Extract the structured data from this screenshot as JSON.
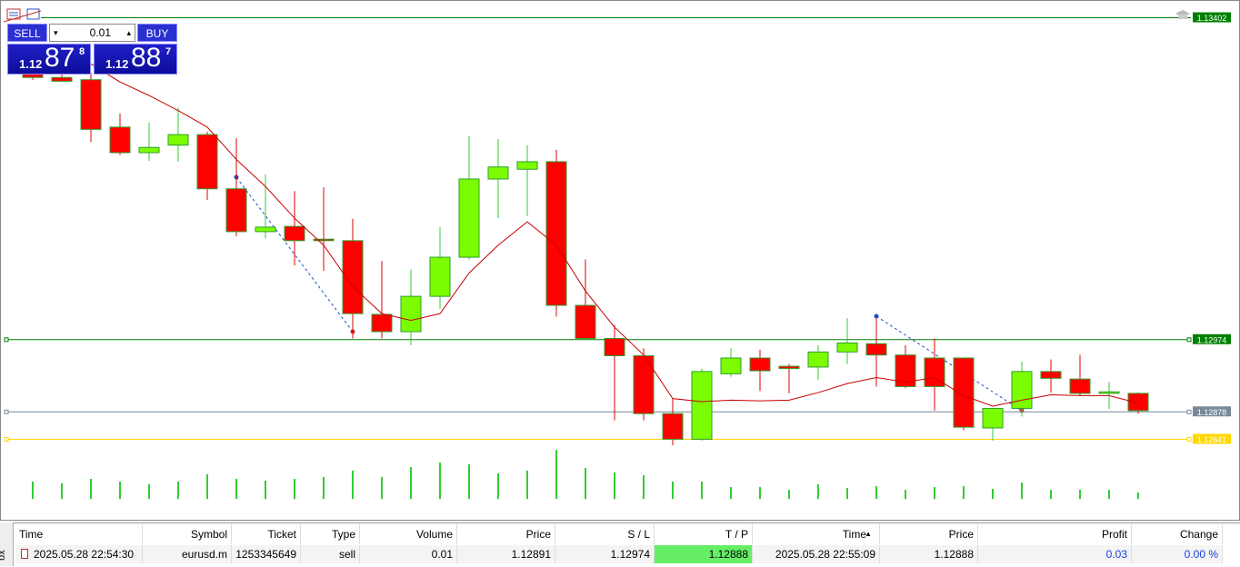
{
  "trade_panel": {
    "sell": "SELL",
    "buy": "BUY",
    "volume": "0.01",
    "bid": {
      "big": "1.12",
      "pips": "87",
      "fraction": "8"
    },
    "ask": {
      "big": "1.12",
      "pips": "88",
      "fraction": "7"
    }
  },
  "chart_data": {
    "type": "candlestick",
    "ylim": [
      1.12833,
      1.13425
    ],
    "open": [
      1.13352,
      1.13322,
      1.13319,
      1.13256,
      1.13222,
      1.13232,
      1.13246,
      1.13174,
      1.13117,
      1.13124,
      1.13107,
      1.13105,
      1.13007,
      1.12984,
      1.13031,
      1.13083,
      1.13187,
      1.132,
      1.1321,
      1.13019,
      1.12975,
      1.12952,
      1.12875,
      1.12841,
      1.12928,
      1.12949,
      1.12938,
      1.12937,
      1.12957,
      1.12968,
      1.12953,
      1.12949,
      1.12949,
      1.12856,
      1.12882,
      1.12931,
      1.12921,
      1.12902,
      1.12902
    ],
    "high": [
      1.13365,
      1.13334,
      1.13328,
      1.13274,
      1.13262,
      1.13282,
      1.1325,
      1.13241,
      1.13193,
      1.13171,
      1.13176,
      1.13134,
      1.13078,
      1.13067,
      1.13123,
      1.13244,
      1.1324,
      1.13232,
      1.13226,
      1.1308,
      1.12993,
      1.12962,
      1.12895,
      1.12935,
      1.12962,
      1.1296,
      1.12941,
      1.12966,
      1.13002,
      1.13002,
      1.12966,
      1.12975,
      1.12949,
      1.12882,
      1.12944,
      1.12947,
      1.12953,
      1.12917,
      1.12903
    ],
    "low": [
      1.13319,
      1.13317,
      1.13236,
      1.13219,
      1.13211,
      1.1321,
      1.13159,
      1.13111,
      1.13108,
      1.13072,
      1.13065,
      1.12975,
      1.12975,
      1.12966,
      1.13014,
      1.1308,
      1.13135,
      1.13138,
      1.13004,
      1.12975,
      1.12866,
      1.12866,
      1.12833,
      1.12839,
      1.12924,
      1.12905,
      1.12902,
      1.1292,
      1.12941,
      1.12911,
      1.12909,
      1.12879,
      1.12853,
      1.12839,
      1.12871,
      1.12903,
      1.12899,
      1.12881,
      1.12875
    ],
    "close": [
      1.13322,
      1.13317,
      1.13253,
      1.13222,
      1.13229,
      1.13246,
      1.13174,
      1.13117,
      1.13123,
      1.13105,
      1.13105,
      1.13008,
      1.12984,
      1.13031,
      1.13083,
      1.13187,
      1.13203,
      1.1321,
      1.13019,
      1.12975,
      1.12952,
      1.12875,
      1.12841,
      1.12931,
      1.12949,
      1.12932,
      1.12935,
      1.12957,
      1.12969,
      1.12953,
      1.12911,
      1.12911,
      1.12857,
      1.12882,
      1.12931,
      1.12922,
      1.12902,
      1.12904,
      1.12879
    ],
    "ma": [
      null,
      null,
      1.1334,
      1.13316,
      1.13298,
      1.13278,
      1.13256,
      1.13213,
      1.13177,
      1.13135,
      1.13099,
      1.13044,
      1.13008,
      1.12999,
      1.13008,
      1.13062,
      1.13099,
      1.1313,
      1.13099,
      1.13038,
      1.1299,
      1.12953,
      1.12895,
      1.12891,
      1.12893,
      1.12892,
      1.12893,
      1.12903,
      1.12915,
      1.12923,
      1.12917,
      1.12923,
      1.12899,
      1.12885,
      1.12893,
      1.129,
      1.12899,
      1.12899,
      1.12889
    ],
    "up_color": "#7cfc00",
    "down_color": "#ff0000",
    "ma_color": "#c80000",
    "volume": [
      19,
      17,
      22,
      19,
      16,
      19,
      27,
      22,
      20,
      22,
      24,
      31,
      24,
      35,
      40,
      38,
      28,
      31,
      54,
      34,
      29,
      26,
      19,
      19,
      13,
      13,
      10,
      16,
      12,
      14,
      10,
      13,
      14,
      11,
      18,
      10,
      10,
      10,
      7
    ],
    "volume_lim": [
      0,
      60
    ],
    "volume_color": "#32cd32",
    "levels": [
      {
        "value": 1.13402,
        "color": "#008000"
      },
      {
        "value": 1.12974,
        "color": "#008000"
      },
      {
        "value": 1.12878,
        "color": "#778899"
      },
      {
        "value": 1.12641,
        "color": "#ffd700"
      }
    ]
  },
  "toolbox_label": "ox",
  "table": {
    "columns": [
      "Time",
      "Symbol",
      "Ticket",
      "Type",
      "Volume",
      "Price",
      "S / L",
      "T / P",
      "Time",
      "Price",
      "Profit",
      "Change"
    ],
    "rows": [
      [
        "2025.05.28 22:54:30",
        "eurusd.m",
        "1253345649",
        "sell",
        "0.01",
        "1.12891",
        "1.12974",
        "1.12888",
        "2025.05.28 22:55:09",
        "1.12888",
        "0.03",
        "0.00 %"
      ]
    ]
  }
}
